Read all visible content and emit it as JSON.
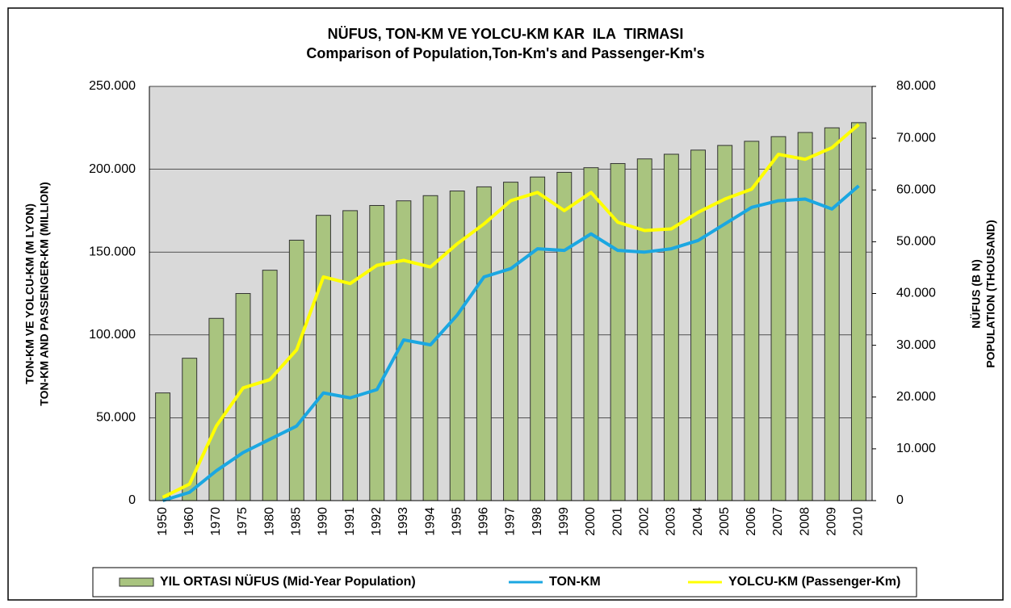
{
  "chart_data": {
    "type": "bar-line",
    "title": "NÜFUS, TON-KM VE YOLCU-KM KAR  ILA  TIRMASI",
    "subtitle": "Comparison of Population,Ton-Km's and Passenger-Km's",
    "y_label": [
      "TON-KM VE YOLCU-KM (M LYON)",
      "TON-KM AND PASSENGER-KM (MILLION)"
    ],
    "y2_label": [
      "NÜFUS (B N)",
      "POPULATION (THOUSAND)"
    ],
    "categories": [
      "1950",
      "1960",
      "1970",
      "1975",
      "1980",
      "1985",
      "1990",
      "1991",
      "1992",
      "1993",
      "1994",
      "1995",
      "1996",
      "1997",
      "1998",
      "1999",
      "2000",
      "2001",
      "2002",
      "2003",
      "2004",
      "2005",
      "2006",
      "2007",
      "2008",
      "2009",
      "2010"
    ],
    "series": [
      {
        "name": "YIL ORTASI NÜFUS (Mid-Year Population)",
        "kind": "bar",
        "axis": "y2",
        "color": "#a9c47f",
        "values": [
          20800,
          27500,
          35200,
          40000,
          44500,
          50300,
          55100,
          56000,
          57000,
          57900,
          58900,
          59800,
          60600,
          61500,
          62500,
          63400,
          64300,
          65100,
          66000,
          66900,
          67700,
          68600,
          69400,
          70300,
          71100,
          72000,
          73000
        ]
      },
      {
        "name": "TON-KM",
        "kind": "line",
        "color": "#1ba7e1",
        "values": [
          0,
          5000,
          18000,
          29000,
          37000,
          45000,
          65000,
          62000,
          67000,
          97000,
          94000,
          112000,
          135000,
          140000,
          152000,
          151000,
          161000,
          151000,
          150000,
          152000,
          157000,
          167000,
          177000,
          181000,
          182000,
          176000,
          190000
        ]
      },
      {
        "name": "YOLCU-KM (Passenger-Km)",
        "kind": "line",
        "color": "#ffff00",
        "values": [
          2000,
          10000,
          45000,
          68000,
          73000,
          91000,
          135000,
          131000,
          142000,
          145000,
          141000,
          155000,
          167000,
          181000,
          186000,
          175000,
          186000,
          168000,
          163000,
          164000,
          174000,
          182000,
          188000,
          209000,
          206000,
          213000,
          227000
        ]
      }
    ],
    "ylim": [
      0,
      250000
    ],
    "yticks": [
      0,
      {
        "value": 50000,
        "label": "50.000"
      },
      {
        "value": 100000,
        "label": "100.000"
      },
      {
        "value": 150000,
        "label": "150.000"
      },
      {
        "value": 200000,
        "label": "200.000"
      },
      {
        "value": 250000,
        "label": "250.000"
      }
    ],
    "y2lim": [
      0,
      80000
    ],
    "y2ticks": [
      0,
      {
        "value": 10000,
        "label": "10.000"
      },
      {
        "value": 20000,
        "label": "20.000"
      },
      {
        "value": 30000,
        "label": "30.000"
      },
      {
        "value": 40000,
        "label": "40.000"
      },
      {
        "value": 50000,
        "label": "50.000"
      },
      {
        "value": 60000,
        "label": "60.000"
      },
      {
        "value": 70000,
        "label": "70.000"
      },
      {
        "value": 80000,
        "label": "80.000"
      }
    ],
    "grid": true,
    "plot_background": "#d9d9d9",
    "legend": "bottom"
  }
}
